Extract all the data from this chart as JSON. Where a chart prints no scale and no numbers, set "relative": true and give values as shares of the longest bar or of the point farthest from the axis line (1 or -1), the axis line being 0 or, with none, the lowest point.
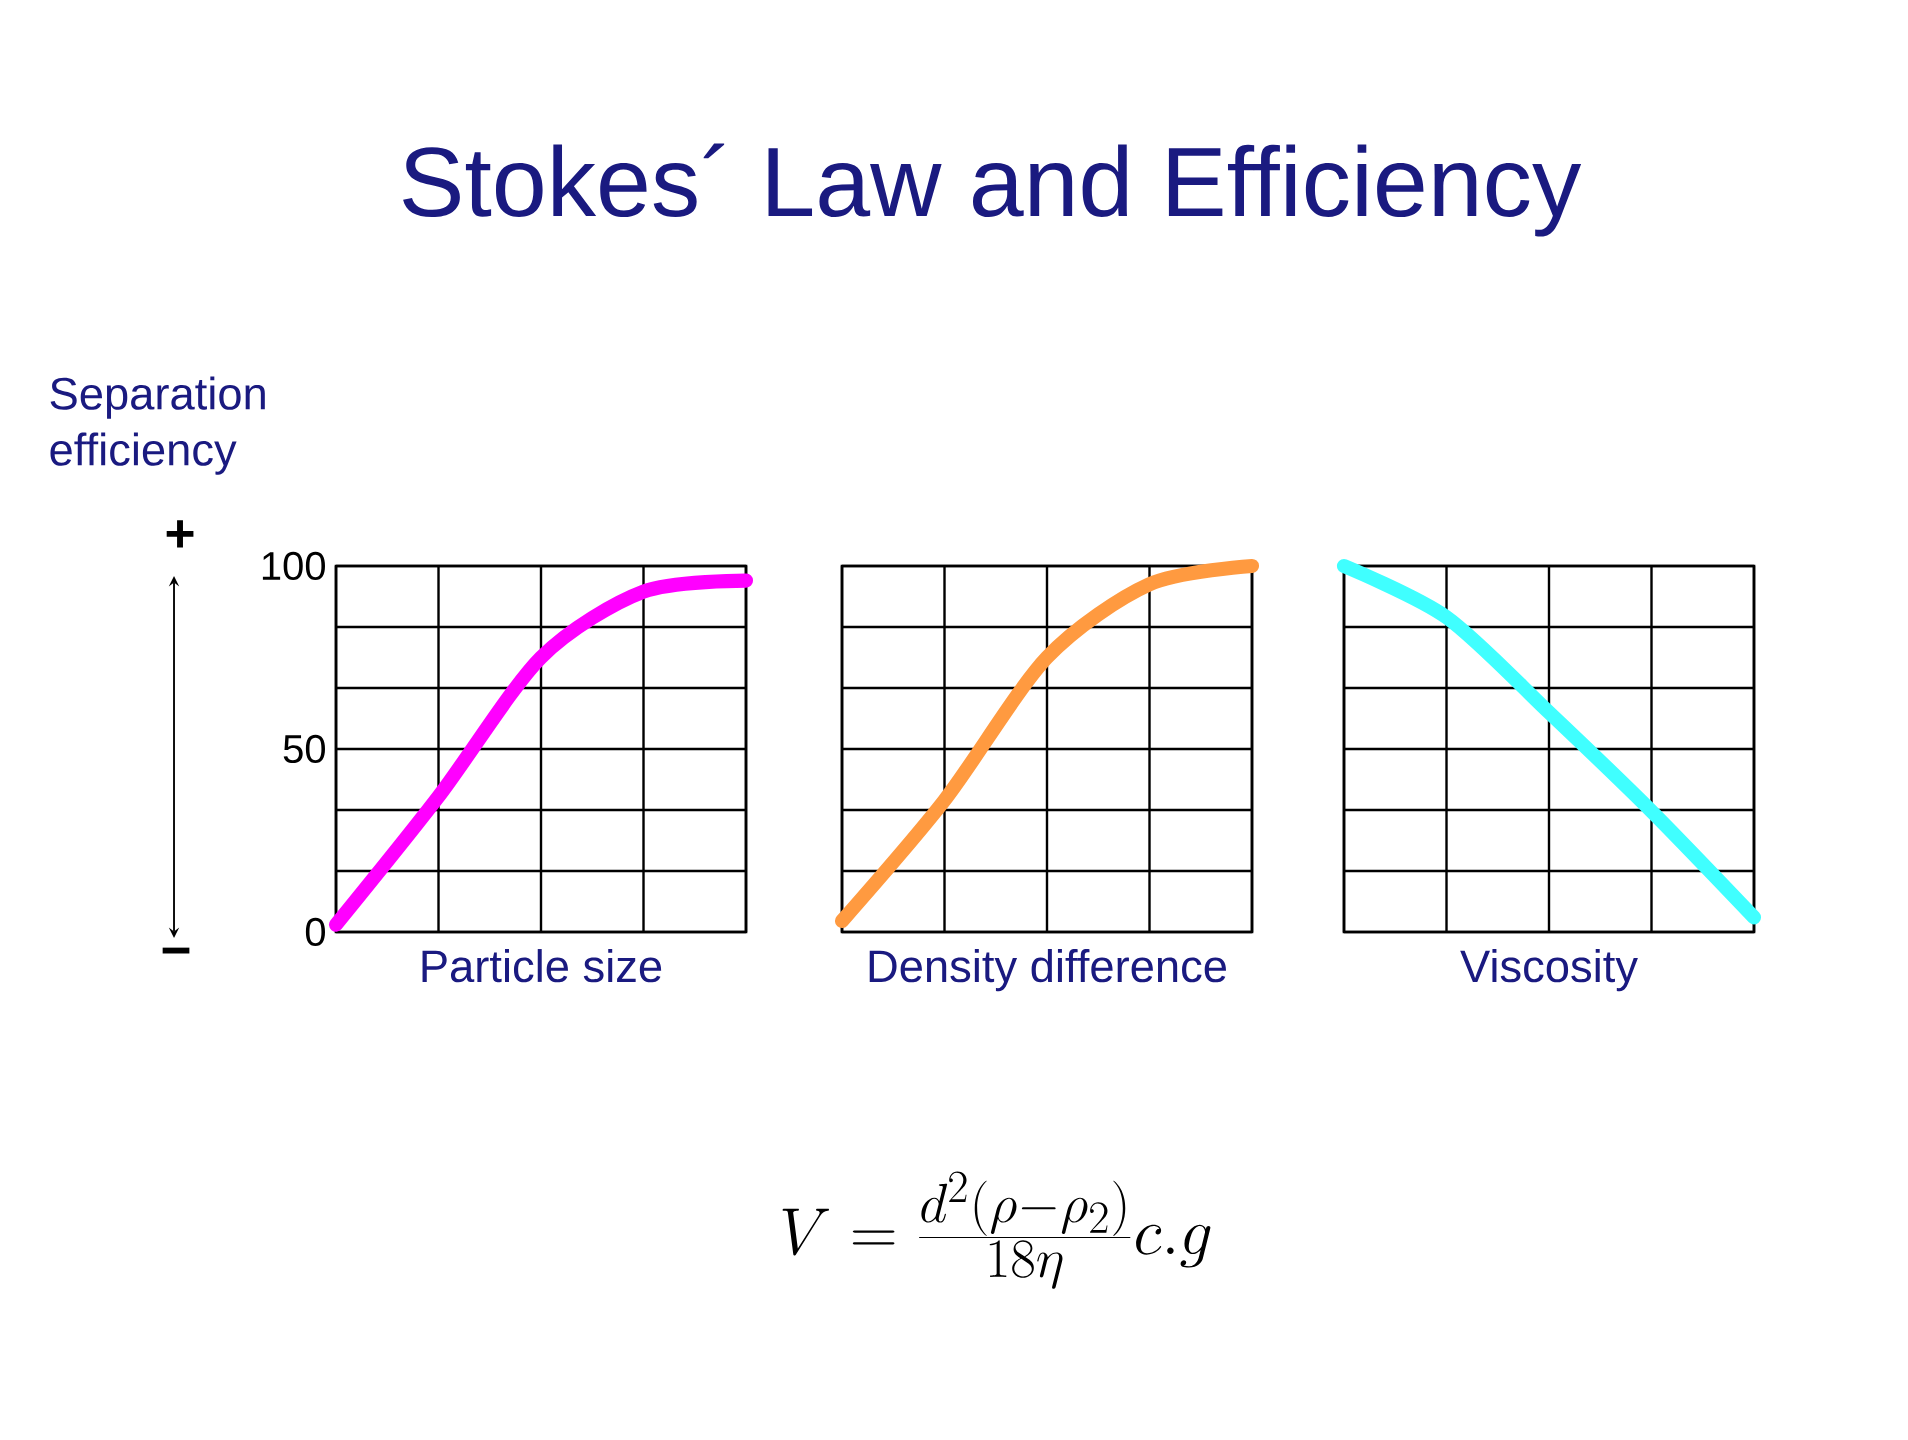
{
  "chart_data": [
    {
      "type": "line",
      "ylabel": "Separation efficiency",
      "xlabel": "Particle size",
      "categories": [
        null,
        null,
        null,
        null,
        null
      ],
      "series": [
        {
          "color": "#ff00ff",
          "values": [
            2,
            37,
            75,
            93,
            96
          ]
        }
      ],
      "ylim": [
        0,
        100
      ],
      "yticks": [
        0,
        {
          "value": 16.67,
          "label": null
        },
        {
          "value": 33.33,
          "label": null
        },
        50,
        {
          "value": 66.67,
          "label": null
        },
        {
          "value": 83.33,
          "label": null
        },
        100
      ],
      "grid": true,
      "tick_labels": "y",
      "annotations": [
        "+",
        "−"
      ]
    },
    {
      "type": "line",
      "title": "Stokes´ Law and Efficiency",
      "xlabel": "Density difference",
      "categories": [
        null,
        null,
        null,
        null,
        null
      ],
      "series": [
        {
          "color": "#ff9a40",
          "values": [
            0.03,
            0.36,
            0.75,
            0.95,
            1.0
          ]
        }
      ],
      "relative": true,
      "grid": true,
      "tick_labels": false,
      "annotations": [
        "V = \\frac{d^{2}(\\rho - \\rho_{2})}{18\\eta}c.g"
      ]
    },
    {
      "type": "line",
      "xlabel": "Viscosity",
      "categories": [
        null,
        null,
        null,
        null,
        null
      ],
      "series": [
        {
          "color": "#40ffff",
          "values": [
            1.0,
            0.86,
            0.6,
            0.33,
            0.04
          ]
        }
      ],
      "relative": true,
      "grid": true,
      "tick_labels": false
    }
  ]
}
